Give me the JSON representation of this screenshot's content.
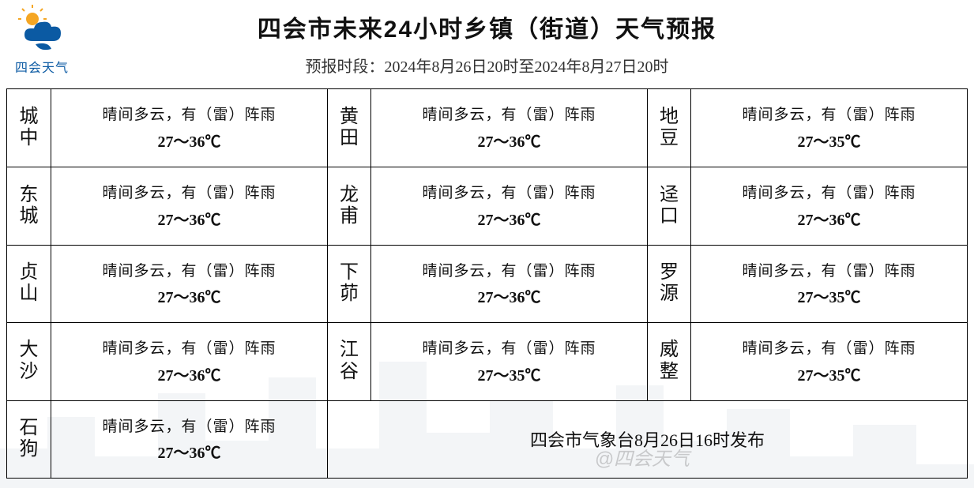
{
  "header": {
    "logo_text": "四会天气",
    "title": "四会市未来24小时乡镇（街道）天气预报",
    "subtitle_prefix": "预报时段：",
    "period": "2024年8月26日20时至2024年8月27日20时"
  },
  "forecast": {
    "common_weather": "晴间多云，有（雷）阵雨",
    "rows": [
      [
        {
          "town": "城中",
          "weather": "晴间多云，有（雷）阵雨",
          "temp": "27～36℃"
        },
        {
          "town": "黄田",
          "weather": "晴间多云，有（雷）阵雨",
          "temp": "27～36℃"
        },
        {
          "town": "地豆",
          "weather": "晴间多云，有（雷）阵雨",
          "temp": "27～35℃"
        }
      ],
      [
        {
          "town": "东城",
          "weather": "晴间多云，有（雷）阵雨",
          "temp": "27～36℃"
        },
        {
          "town": "龙甫",
          "weather": "晴间多云，有（雷）阵雨",
          "temp": "27～36℃"
        },
        {
          "town": "迳口",
          "weather": "晴间多云，有（雷）阵雨",
          "temp": "27～36℃"
        }
      ],
      [
        {
          "town": "贞山",
          "weather": "晴间多云，有（雷）阵雨",
          "temp": "27～36℃"
        },
        {
          "town": "下茆",
          "weather": "晴间多云，有（雷）阵雨",
          "temp": "27～36℃"
        },
        {
          "town": "罗源",
          "weather": "晴间多云，有（雷）阵雨",
          "temp": "27～35℃"
        }
      ],
      [
        {
          "town": "大沙",
          "weather": "晴间多云，有（雷）阵雨",
          "temp": "27～36℃"
        },
        {
          "town": "江谷",
          "weather": "晴间多云，有（雷）阵雨",
          "temp": "27～35℃"
        },
        {
          "town": "威整",
          "weather": "晴间多云，有（雷）阵雨",
          "temp": "27～35℃"
        }
      ],
      [
        {
          "town": "石狗",
          "weather": "晴间多云，有（雷）阵雨",
          "temp": "27～36℃"
        }
      ]
    ]
  },
  "footer": {
    "issuer": "四会市气象台8月26日16时发布"
  },
  "watermark": "@四会天气",
  "style": {
    "border_color": "#000000",
    "title_fontsize": 30,
    "sub_fontsize": 20,
    "town_fontsize": 24,
    "wx_fontsize": 19,
    "temp_fontsize": 20,
    "footer_fontsize": 22,
    "logo_colors": {
      "sun": "#f5a623",
      "cloud": "#0b5aa3"
    }
  }
}
